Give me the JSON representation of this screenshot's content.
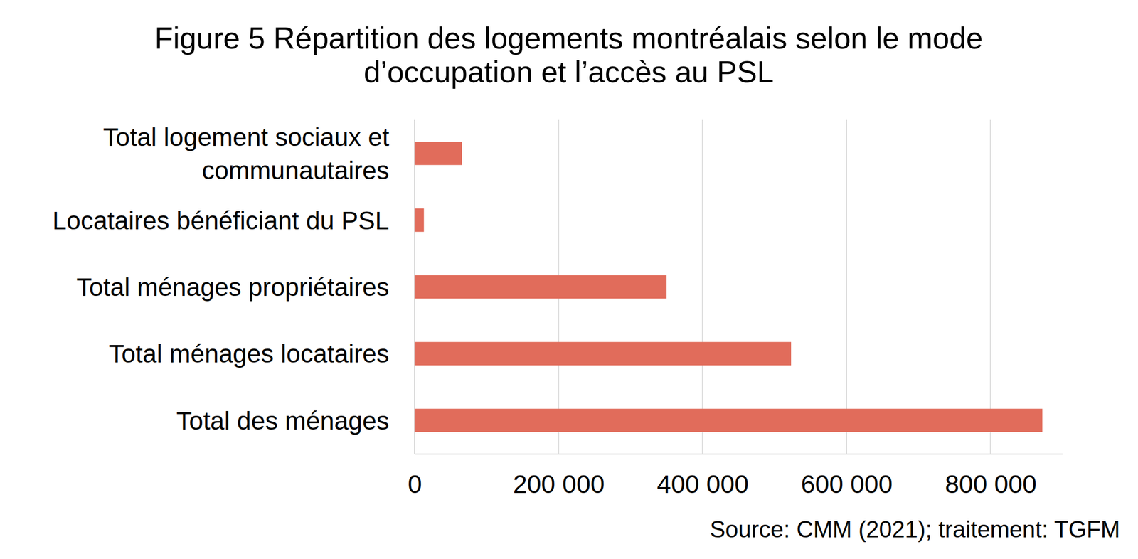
{
  "chart_data": {
    "type": "bar",
    "orientation": "horizontal",
    "title": "Figure 5 Répartition des logements montréalais selon le mode d’occupation et l’accès au PSL",
    "source": "Source: CMM (2021); traitement: TGFM",
    "categories": [
      "Total logement sociaux et communautaires",
      "Locataires bénéficiant du PSL",
      "Total ménages propriétaires",
      "Total ménages locataires",
      "Total des ménages"
    ],
    "values": [
      66000,
      13000,
      350000,
      523000,
      872000
    ],
    "color": "#e16c5b",
    "xlim": [
      0,
      900000
    ],
    "xticks": [
      0,
      {
        "value": 200000,
        "label": "200 000"
      },
      {
        "value": 400000,
        "label": "400 000"
      },
      {
        "value": 600000,
        "label": "600 000"
      },
      {
        "value": 800000,
        "label": "800 000"
      }
    ],
    "grid": true
  }
}
